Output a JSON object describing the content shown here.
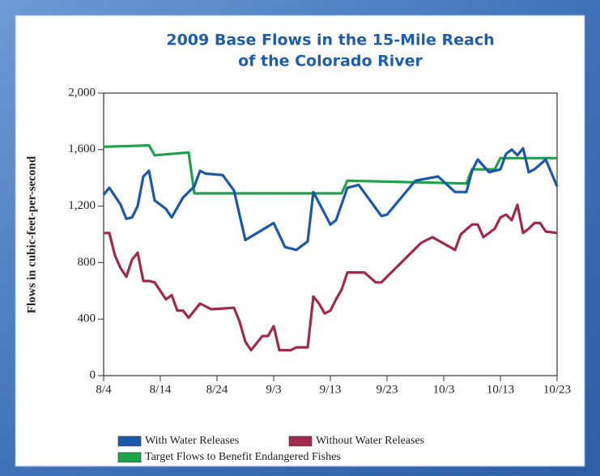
{
  "chart_data": {
    "type": "line",
    "title": [
      "2009 Base Flows in the 15-Mile Reach",
      "of the Colorado River"
    ],
    "ylabel": "Flows in cubic-feet-per-second",
    "xlim": [
      "8/4",
      "10/23"
    ],
    "xticks": [
      "8/4",
      "8/14",
      "8/24",
      "9/3",
      "9/13",
      "9/23",
      "10/3",
      "10/13",
      "10/23"
    ],
    "ylim": [
      0,
      2000
    ],
    "yticks": [
      0,
      400,
      800,
      {
        "value": 1200,
        "label": "1,200"
      },
      {
        "value": 1600,
        "label": "1,600"
      },
      {
        "value": 2000,
        "label": "2,000"
      }
    ],
    "series": [
      {
        "name": "With Water Releases",
        "color": "#1b58a5",
        "x": [
          "8/4",
          "8/5",
          "8/7",
          "8/8",
          "8/9",
          "8/10",
          "8/11",
          "8/12",
          "8/13",
          "8/15",
          "8/16",
          "8/18",
          "8/20",
          "8/21",
          "8/22",
          "8/25",
          "8/27",
          "8/29",
          "9/3",
          "9/5",
          "9/7",
          "9/9",
          "9/10",
          "9/13",
          "9/14",
          "9/16",
          "9/18",
          "9/22",
          "9/23",
          "9/28",
          "10/2",
          "10/5",
          "10/7",
          "10/8",
          "10/9",
          "10/11",
          "10/13",
          "10/14",
          "10/15",
          "10/16",
          "10/17",
          "10/18",
          "10/19",
          "10/21",
          "10/23"
        ],
        "values": [
          1280,
          1330,
          1210,
          1110,
          1120,
          1200,
          1410,
          1450,
          1240,
          1180,
          1120,
          1260,
          1340,
          1450,
          1430,
          1420,
          1310,
          960,
          1080,
          910,
          890,
          950,
          1300,
          1070,
          1100,
          1330,
          1350,
          1130,
          1140,
          1380,
          1410,
          1300,
          1300,
          1450,
          1530,
          1440,
          1460,
          1570,
          1600,
          1560,
          1610,
          1440,
          1460,
          1530,
          1340
        ]
      },
      {
        "name": "Without Water Releases",
        "color": "#a02a4c",
        "x": [
          "8/4",
          "8/5",
          "8/6",
          "8/7",
          "8/8",
          "8/9",
          "8/10",
          "8/11",
          "8/12",
          "8/13",
          "8/15",
          "8/16",
          "8/17",
          "8/18",
          "8/19",
          "8/21",
          "8/22",
          "8/23",
          "8/27",
          "8/28",
          "8/29",
          "8/30",
          "8/31",
          "9/1",
          "9/2",
          "9/3",
          "9/4",
          "9/6",
          "9/7",
          "9/9",
          "9/10",
          "9/11",
          "9/12",
          "9/13",
          "9/14",
          "9/15",
          "9/16",
          "9/19",
          "9/21",
          "9/22",
          "9/29",
          "9/30",
          "10/1",
          "10/5",
          "10/6",
          "10/8",
          "10/9",
          "10/10",
          "10/12",
          "10/13",
          "10/14",
          "10/15",
          "10/16",
          "10/17",
          "10/18",
          "10/19",
          "10/20",
          "10/21",
          "10/23"
        ],
        "values": [
          1010,
          1010,
          850,
          760,
          700,
          820,
          870,
          670,
          670,
          660,
          540,
          570,
          460,
          460,
          410,
          510,
          490,
          470,
          480,
          380,
          240,
          180,
          230,
          280,
          280,
          350,
          180,
          180,
          200,
          200,
          560,
          510,
          440,
          460,
          540,
          610,
          730,
          730,
          660,
          660,
          940,
          960,
          980,
          890,
          1000,
          1070,
          1070,
          980,
          1040,
          1120,
          1140,
          1100,
          1210,
          1010,
          1040,
          1080,
          1080,
          1020,
          1010
        ]
      },
      {
        "name": "Target Flows to Benefit Endangered Fishes",
        "color": "#1fa24b",
        "x": [
          "8/4",
          "8/12",
          "8/13",
          "8/19",
          "8/20",
          "9/15",
          "9/16",
          "10/7",
          "10/8",
          "10/12",
          "10/13",
          "10/23"
        ],
        "values": [
          1620,
          1630,
          1560,
          1580,
          1290,
          1290,
          1380,
          1360,
          1460,
          1460,
          1540,
          1540
        ]
      }
    ]
  }
}
